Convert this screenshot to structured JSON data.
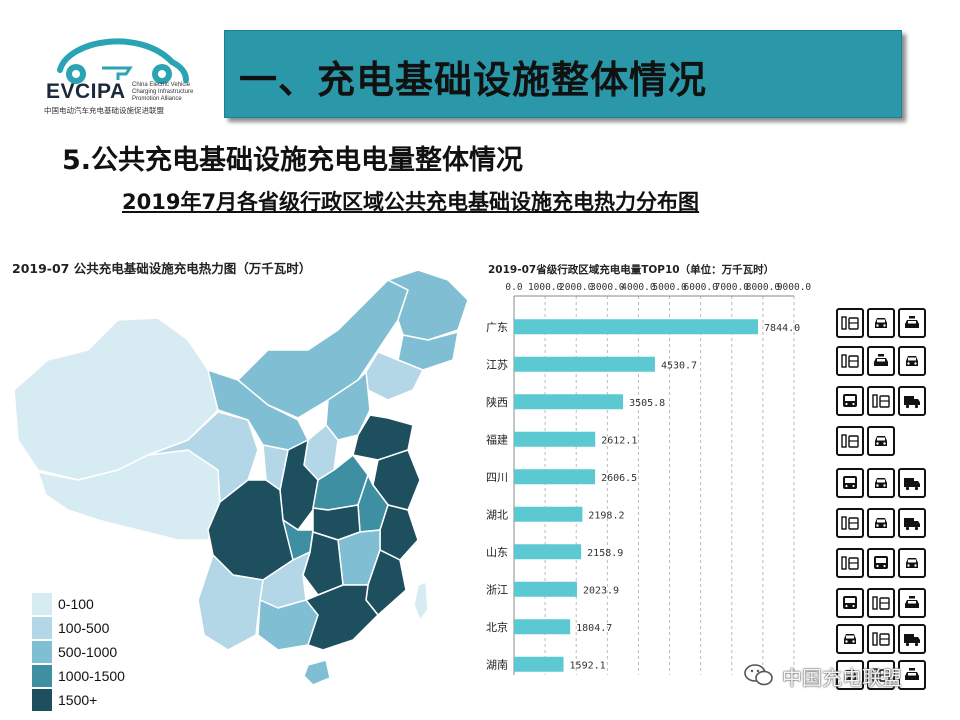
{
  "logo": {
    "name": "EVCIPA",
    "sub_en": "China Electric Vehicle Charging Infrastructure Promotion Alliance",
    "sub_cn": "中国电动汽车充电基础设施促进联盟"
  },
  "header": {
    "title": "一、充电基础设施整体情况",
    "subtitle": "5.公共充电基础设施充电电量整体情况",
    "heading": "2019年7月各省级行政区域公共充电基础设施充电热力分布图"
  },
  "map": {
    "title": "2019-07 公共充电基础设施充电热力图（万千瓦时）",
    "legend": [
      {
        "label": "0-100",
        "color": "#d7ebf2"
      },
      {
        "label": "100-500",
        "color": "#b3d7e6"
      },
      {
        "label": "500-1000",
        "color": "#7fbed3"
      },
      {
        "label": "1000-1500",
        "color": "#3f8fa3"
      },
      {
        "label": "1500+",
        "color": "#1d4f5e"
      }
    ]
  },
  "chart_data": {
    "type": "bar",
    "orientation": "horizontal",
    "title": "2019-07省级行政区域充电电量TOP10（单位：万千瓦时）",
    "categories": [
      "广东",
      "江苏",
      "陕西",
      "福建",
      "四川",
      "湖北",
      "山东",
      "浙江",
      "北京",
      "湖南"
    ],
    "values": [
      7844.0,
      4530.7,
      3505.8,
      2612.1,
      2606.5,
      2198.2,
      2158.9,
      2023.9,
      1804.7,
      1592.1
    ],
    "value_labels": [
      "7844.0",
      "4530.7",
      "3505.8",
      "2612.1",
      "2606.5",
      "2198.2",
      "2158.9",
      "2023.9",
      "1804.7",
      "1592.1"
    ],
    "xticks": [
      "0.0",
      "1000.0",
      "2000.0",
      "3000.0",
      "4000.0",
      "5000.0",
      "6000.0",
      "7000.0",
      "8000.0",
      "9000.0"
    ],
    "xlim": [
      0,
      9000
    ],
    "axis_position": "top",
    "grid": "vertical-dashed",
    "bar_color": "#5bc8d2"
  },
  "icons": [
    [
      "charger-bus-icon",
      "car-front-icon",
      "taxi-icon"
    ],
    [
      "charger-bus-icon",
      "taxi-icon",
      "car-front-icon"
    ],
    [
      "bus-front-icon",
      "charger-bus-icon",
      "truck-icon"
    ],
    [
      "charger-bus-icon",
      "car-front-icon"
    ],
    [
      "bus-front-icon",
      "car-front-icon",
      "truck-icon"
    ],
    [
      "charger-bus-icon",
      "car-front-icon",
      "truck-icon"
    ],
    [
      "charger-bus-icon",
      "bus-front-icon",
      "car-front-icon"
    ],
    [
      "bus-front-icon",
      "charger-bus-icon",
      "taxi-icon"
    ],
    [
      "car-front-icon",
      "charger-bus-icon",
      "truck-icon"
    ],
    [
      "car-front-icon",
      "charger-bus-icon",
      "taxi-icon"
    ]
  ],
  "watermark": "中国充电联盟"
}
